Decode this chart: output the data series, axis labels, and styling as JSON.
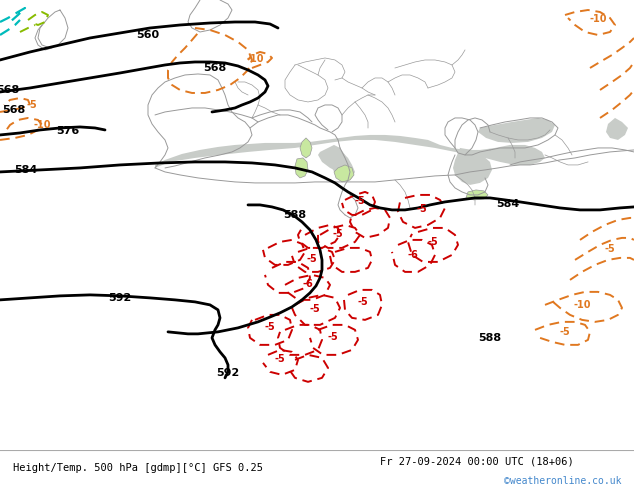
{
  "title_left": "Height/Temp. 500 hPa [gdmp][°C] GFS 0.25",
  "title_right": "Fr 27-09-2024 00:00 UTC (18+06)",
  "credit": "©weatheronline.co.uk",
  "background_land": "#c8e8a0",
  "background_sea": "#c8ccc8",
  "contour_height_color": "#000000",
  "contour_temp_neg_color": "#cc0000",
  "contour_temp_orange_color": "#e07820",
  "contour_temp_cyan_color": "#00bbbb",
  "contour_temp_green_color": "#88bb00",
  "coast_color": "#999999",
  "fig_width": 6.34,
  "fig_height": 4.9,
  "dpi": 100
}
